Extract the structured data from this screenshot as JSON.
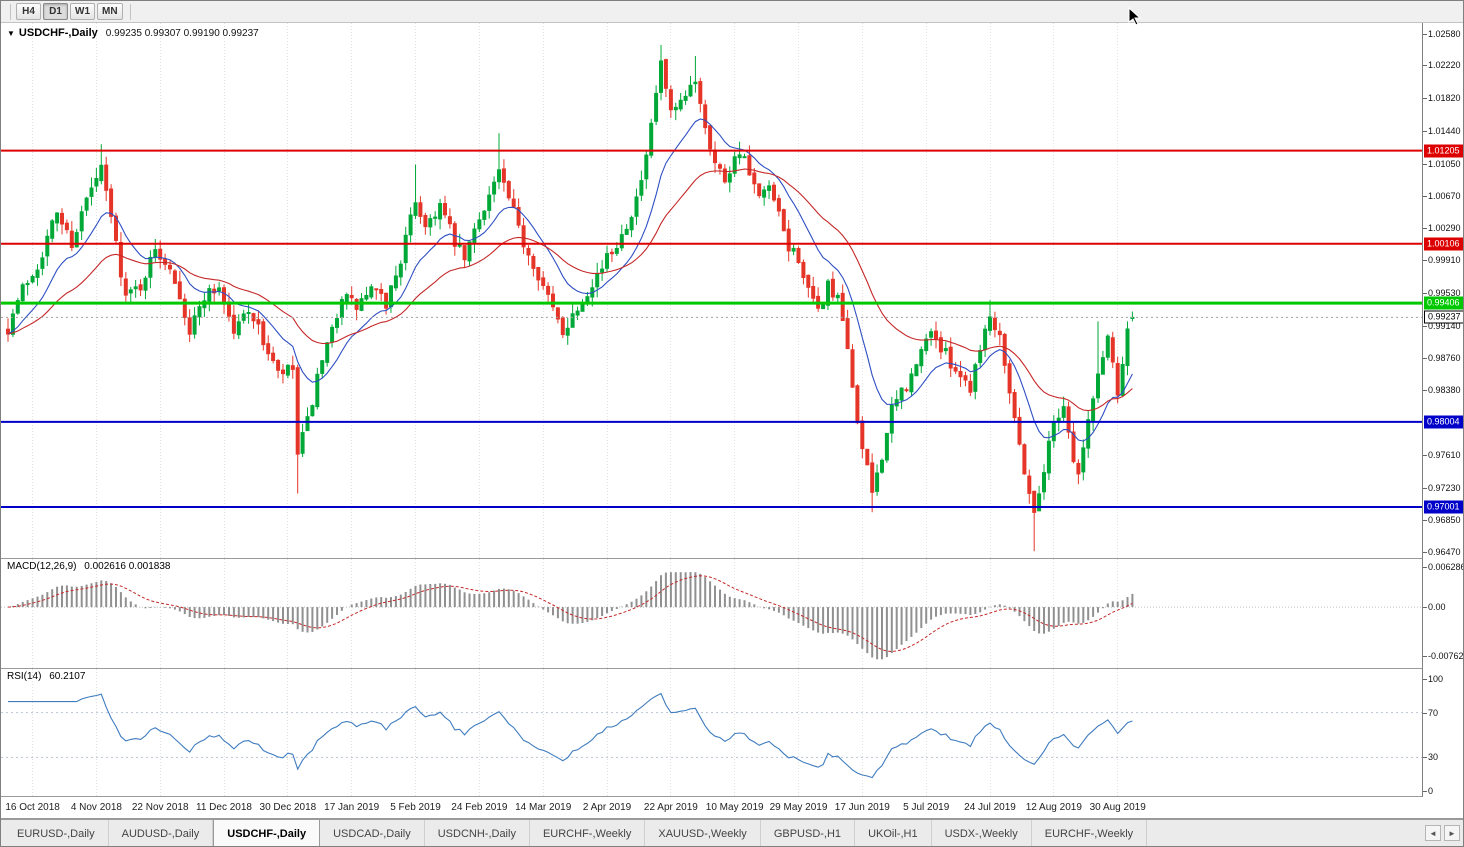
{
  "toolbar": {
    "timeframes": [
      {
        "label": "H4",
        "active": false
      },
      {
        "label": "D1",
        "active": true
      },
      {
        "label": "W1",
        "active": false
      },
      {
        "label": "MN",
        "active": false
      }
    ]
  },
  "icons": {
    "dropdown_glyph": "▼",
    "scroll_left_glyph": "◄",
    "scroll_right_glyph": "►",
    "cursor": "mouse-pointer"
  },
  "chart": {
    "title": "USDCHF-,Daily",
    "ohlc": "0.99235 0.99307 0.99190 0.99237"
  },
  "indicators": {
    "macd": {
      "label": "MACD(12,26,9)",
      "values": "0.002616 0.001838",
      "axis_labels": [
        {
          "text": "0.006286",
          "value": 0.006286
        },
        {
          "text": "0.00",
          "value": 0
        },
        {
          "text": "-0.00762",
          "value": -0.00762
        }
      ]
    },
    "rsi": {
      "label": "RSI(14)",
      "value": "60.2107",
      "levels": [
        70,
        30
      ],
      "axis_labels": [
        {
          "text": "100",
          "value": 100
        },
        {
          "text": "70",
          "value": 70
        },
        {
          "text": "30",
          "value": 30
        },
        {
          "text": "0",
          "value": 0
        }
      ]
    }
  },
  "price_axis": {
    "labels": [
      "1.02580",
      "1.02220",
      "1.01820",
      "1.01440",
      "1.01050",
      "1.00670",
      "1.00290",
      "0.99910",
      "0.99530",
      "0.99140",
      "0.98760",
      "0.98380",
      "0.97610",
      "0.97230",
      "0.96850",
      "0.96470"
    ]
  },
  "dates": [
    "16 Oct 2018",
    "4 Nov 2018",
    "22 Nov 2018",
    "11 Dec 2018",
    "30 Dec 2018",
    "17 Jan 2019",
    "5 Feb 2019",
    "24 Feb 2019",
    "14 Mar 2019",
    "2 Apr 2019",
    "22 Apr 2019",
    "10 May 2019",
    "29 May 2019",
    "17 Jun 2019",
    "5 Jul 2019",
    "24 Jul 2019",
    "12 Aug 2019",
    "30 Aug 2019"
  ],
  "tabs": {
    "active_index": 2,
    "items": [
      {
        "label": "EURUSD-,Daily"
      },
      {
        "label": "AUDUSD-,Daily"
      },
      {
        "label": "USDCHF-,Daily"
      },
      {
        "label": "USDCAD-,Daily"
      },
      {
        "label": "USDCNH-,Daily"
      },
      {
        "label": "EURCHF-,Weekly"
      },
      {
        "label": "XAUUSD-,Weekly"
      },
      {
        "label": "GBPUSD-,H1"
      },
      {
        "label": "UKOil-,H1"
      },
      {
        "label": "USDX-,Weekly"
      },
      {
        "label": "EURCHF-,Weekly"
      }
    ]
  },
  "chart_data": {
    "type": "candlestick",
    "symbol": "USDCHF",
    "timeframe": "Daily",
    "bar_count": 230,
    "last_bar": {
      "open": 0.99235,
      "high": 0.99307,
      "low": 0.9919,
      "close": 0.99237
    },
    "price_axis_range": {
      "max": 1.0258,
      "min": 0.9647
    },
    "x_axis": {
      "first_tick_bar": 5,
      "tick_step_bars": 13
    },
    "levels": [
      {
        "value": 1.01205,
        "label": "1.01205",
        "line_color": "#dd0000",
        "line_width": 2,
        "chip_bg": "#dd0000",
        "chip_fg": "#ffffff"
      },
      {
        "value": 1.00106,
        "label": "1.00106",
        "line_color": "#dd0000",
        "line_width": 2,
        "chip_bg": "#dd0000",
        "chip_fg": "#ffffff"
      },
      {
        "value": 0.99406,
        "label": "0.99406",
        "line_color": "#00c800",
        "line_width": 3,
        "chip_bg": "#00c800",
        "chip_fg": "#ffffff"
      },
      {
        "value": 0.98004,
        "label": "0.98004",
        "line_color": "#0000c8",
        "line_width": 2,
        "chip_bg": "#0000c8",
        "chip_fg": "#ffffff"
      },
      {
        "value": 0.97001,
        "label": "0.97001",
        "line_color": "#0000c8",
        "line_width": 2,
        "chip_bg": "#0000c8",
        "chip_fg": "#ffffff"
      },
      {
        "value": 0.99237,
        "label": "0.99237",
        "line_color": "#a0a0a0",
        "line_width": 1,
        "line_dash": "2,3",
        "chip_bg": "#ffffff",
        "chip_fg": "#000000",
        "chip_border": "#000000"
      }
    ],
    "moving_averages": [
      {
        "period": 13,
        "color": "#2e4fc4"
      },
      {
        "period": 34,
        "color": "#c62828"
      }
    ],
    "macd": {
      "fast": 12,
      "slow": 26,
      "signal": 9,
      "axis_range": {
        "max": 0.0075,
        "min": -0.0095
      }
    },
    "rsi": {
      "period": 14
    },
    "colors": {
      "up": "#00a838",
      "down": "#e53528",
      "macd_histogram": "#909090",
      "macd_signal": "#c62828",
      "rsi": "#3f7cbf",
      "grid": "#e0e0e0",
      "rsi_level": "#b9c4d6"
    },
    "anchors": [
      [
        0,
        0.9912
      ],
      [
        3,
        0.9958
      ],
      [
        6,
        0.9985
      ],
      [
        10,
        1.0048
      ],
      [
        13,
        1.0012
      ],
      [
        16,
        1.0062
      ],
      [
        19,
        1.0098
      ],
      [
        21,
        1.0042
      ],
      [
        24,
        0.9948
      ],
      [
        27,
        0.9962
      ],
      [
        30,
        1.0002
      ],
      [
        33,
        0.9986
      ],
      [
        35,
        0.9952
      ],
      [
        37,
        0.9906
      ],
      [
        40,
        0.995
      ],
      [
        43,
        0.996
      ],
      [
        46,
        0.9906
      ],
      [
        49,
        0.9936
      ],
      [
        52,
        0.9896
      ],
      [
        55,
        0.9856
      ],
      [
        58,
        0.9862
      ],
      [
        59,
        0.9762
      ],
      [
        61,
        0.98
      ],
      [
        63,
        0.985
      ],
      [
        65,
        0.9886
      ],
      [
        68,
        0.995
      ],
      [
        71,
        0.9936
      ],
      [
        74,
        0.9956
      ],
      [
        77,
        0.994
      ],
      [
        80,
        0.9992
      ],
      [
        83,
        1.0062
      ],
      [
        85,
        1.0032
      ],
      [
        88,
        1.0056
      ],
      [
        91,
        1.0012
      ],
      [
        93,
        0.9992
      ],
      [
        96,
        1.0042
      ],
      [
        99,
        1.0082
      ],
      [
        100,
        1.0096
      ],
      [
        102,
        1.0062
      ],
      [
        105,
        1.0012
      ],
      [
        108,
        0.9976
      ],
      [
        111,
        0.9932
      ],
      [
        113,
        0.9908
      ],
      [
        116,
        0.9936
      ],
      [
        119,
        0.9966
      ],
      [
        122,
        0.9992
      ],
      [
        125,
        1.0022
      ],
      [
        128,
        1.0062
      ],
      [
        130,
        1.0108
      ],
      [
        132,
        1.0188
      ],
      [
        133,
        1.0222
      ],
      [
        135,
        1.0162
      ],
      [
        137,
        1.0172
      ],
      [
        140,
        1.0206
      ],
      [
        142,
        1.0152
      ],
      [
        144,
        1.0106
      ],
      [
        146,
        1.0088
      ],
      [
        149,
        1.0122
      ],
      [
        151,
        1.0092
      ],
      [
        153,
        1.0062
      ],
      [
        155,
        1.0076
      ],
      [
        157,
        1.0042
      ],
      [
        159,
        1.0006
      ],
      [
        161,
        0.9995
      ],
      [
        163,
        0.9952
      ],
      [
        165,
        0.993
      ],
      [
        167,
        0.9962
      ],
      [
        169,
        0.9942
      ],
      [
        170,
        0.992
      ],
      [
        172,
        0.9842
      ],
      [
        174,
        0.9768
      ],
      [
        176,
        0.9718
      ],
      [
        178,
        0.9762
      ],
      [
        180,
        0.9812
      ],
      [
        182,
        0.9836
      ],
      [
        184,
        0.9852
      ],
      [
        186,
        0.9882
      ],
      [
        188,
        0.9912
      ],
      [
        190,
        0.9886
      ],
      [
        192,
        0.9872
      ],
      [
        194,
        0.9856
      ],
      [
        196,
        0.9842
      ],
      [
        198,
        0.9892
      ],
      [
        200,
        0.9925
      ],
      [
        202,
        0.9906
      ],
      [
        204,
        0.984
      ],
      [
        206,
        0.9772
      ],
      [
        208,
        0.9718
      ],
      [
        209,
        0.9692
      ],
      [
        211,
        0.9746
      ],
      [
        213,
        0.98
      ],
      [
        215,
        0.9822
      ],
      [
        217,
        0.9756
      ],
      [
        218,
        0.9738
      ],
      [
        220,
        0.98
      ],
      [
        222,
        0.9856
      ],
      [
        224,
        0.9902
      ],
      [
        226,
        0.9838
      ],
      [
        227,
        0.9872
      ],
      [
        228,
        0.9912
      ],
      [
        229,
        0.99237
      ]
    ],
    "spikes": [
      {
        "i": 19,
        "high": 1.0128
      },
      {
        "i": 59,
        "low": 0.9716
      },
      {
        "i": 83,
        "high": 1.0104
      },
      {
        "i": 100,
        "high": 1.0141
      },
      {
        "i": 133,
        "high": 1.0245
      },
      {
        "i": 140,
        "high": 1.0232
      },
      {
        "i": 149,
        "high": 1.0131
      },
      {
        "i": 176,
        "low": 0.9694
      },
      {
        "i": 200,
        "high": 0.9944
      },
      {
        "i": 209,
        "low": 0.9648
      },
      {
        "i": 218,
        "low": 0.9727
      },
      {
        "i": 222,
        "high": 0.9919
      }
    ],
    "synthesis": {
      "seed": 7,
      "close_noise": 0.0016,
      "open_noise": 0.0005,
      "wick_noise": 0.0013
    }
  }
}
